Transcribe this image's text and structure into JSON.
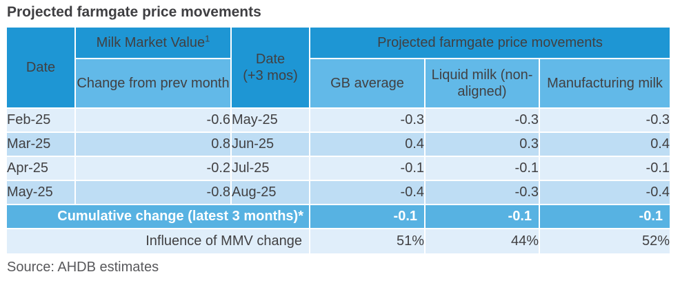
{
  "title": "Projected farmgate price movements",
  "source_note": "Source: AHDB estimates",
  "colors": {
    "header_dark_blue": "#1E96D4",
    "header_light_blue": "#62B9E8",
    "cumulative_row_blue": "#57B2E2",
    "row_light": "#E0EEFA",
    "row_alternate": "#BEDDF4",
    "body_text": "#414042",
    "header_text": "#FFFFFF"
  },
  "chart_data": {
    "type": "table",
    "title": "Projected farmgate price movements",
    "header": {
      "date_col": "Date",
      "mmv_group_label": "Milk Market Value",
      "mmv_superscript": "1",
      "mmv_sub_col": "Change from prev month",
      "date3_line1": "Date",
      "date3_line2": "(+3 mos)",
      "projected_group_label": "Projected farmgate price movements",
      "gb_col": "GB average",
      "liquid_col": "Liquid milk (non-aligned)",
      "manufacturing_col": "Manufacturing milk"
    },
    "rows": [
      {
        "date": "Feb-25",
        "mmv_change": "-0.6",
        "date_plus3": "May-25",
        "gb_average": "-0.3",
        "liquid_milk": "-0.3",
        "manufacturing_milk": "-0.3"
      },
      {
        "date": "Mar-25",
        "mmv_change": "0.8",
        "date_plus3": "Jun-25",
        "gb_average": "0.4",
        "liquid_milk": "0.3",
        "manufacturing_milk": "0.4"
      },
      {
        "date": "Apr-25",
        "mmv_change": "-0.2",
        "date_plus3": "Jul-25",
        "gb_average": "-0.1",
        "liquid_milk": "-0.1",
        "manufacturing_milk": "-0.1"
      },
      {
        "date": "May-25",
        "mmv_change": "-0.8",
        "date_plus3": "Aug-25",
        "gb_average": "-0.4",
        "liquid_milk": "-0.3",
        "manufacturing_milk": "-0.4"
      }
    ],
    "cumulative_row": {
      "label": "Cumulative change (latest 3 months)*",
      "gb_average": "-0.1",
      "liquid_milk": "-0.1",
      "manufacturing_milk": "-0.1"
    },
    "influence_row": {
      "label": "Influence of MMV change",
      "gb_average": "51%",
      "liquid_milk": "44%",
      "manufacturing_milk": "52%"
    }
  }
}
